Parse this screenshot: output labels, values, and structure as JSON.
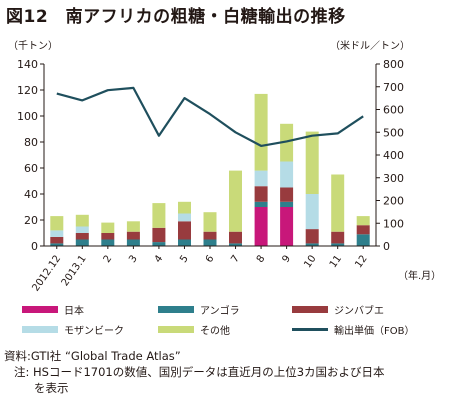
{
  "title": "図12　南アフリカの粗糖・白糖輸出の推移",
  "left_unit": "（千トン）",
  "right_unit": "（米ドル／トン）",
  "x_unit": "（年.月）",
  "source": "資料:GTI社 “Global Trade Atlas”",
  "note_line1": "注: HSコード1701の数値、国別データは直近月の上位3カ国および日本",
  "note_line2": "を表示",
  "chart_data": {
    "type": "bar",
    "stacked": true,
    "categories": [
      "2012.12",
      "2013.1",
      "2",
      "3",
      "4",
      "5",
      "6",
      "7",
      "8",
      "9",
      "10",
      "11",
      "12"
    ],
    "ylim": [
      0,
      140
    ],
    "yticks": [
      0,
      20,
      40,
      60,
      80,
      100,
      120,
      140
    ],
    "y2lim": [
      0,
      800
    ],
    "y2ticks": [
      0,
      100,
      200,
      300,
      400,
      500,
      600,
      700,
      800
    ],
    "grid": false,
    "series": [
      {
        "name": "日本",
        "color": "#c8177a",
        "values": [
          0,
          0,
          0,
          0,
          0,
          0,
          0,
          0,
          30,
          30,
          0,
          0,
          0
        ]
      },
      {
        "name": "アンゴラ",
        "color": "#2e7f8c",
        "values": [
          2,
          5,
          5,
          5,
          3,
          5,
          5,
          2,
          4,
          4,
          2,
          2,
          9
        ]
      },
      {
        "name": "ジンバブエ",
        "color": "#983b3e",
        "values": [
          5,
          5,
          5,
          6,
          11,
          14,
          6,
          9,
          12,
          11,
          11,
          9,
          7
        ]
      },
      {
        "name": "モザンビーク",
        "color": "#b5dce6",
        "values": [
          5,
          5,
          0,
          0,
          0,
          6,
          0,
          0,
          12,
          20,
          27,
          0,
          0
        ]
      },
      {
        "name": "その他",
        "color": "#c9da79",
        "values": [
          11,
          9,
          8,
          8,
          19,
          9,
          15,
          47,
          59,
          29,
          48,
          44,
          7
        ]
      }
    ],
    "line_series": {
      "name": "輸出単価（FOB）",
      "color": "#1f4f5d",
      "axis": "right",
      "values": [
        670,
        640,
        685,
        695,
        485,
        650,
        580,
        500,
        440,
        460,
        485,
        495,
        570
      ]
    }
  }
}
